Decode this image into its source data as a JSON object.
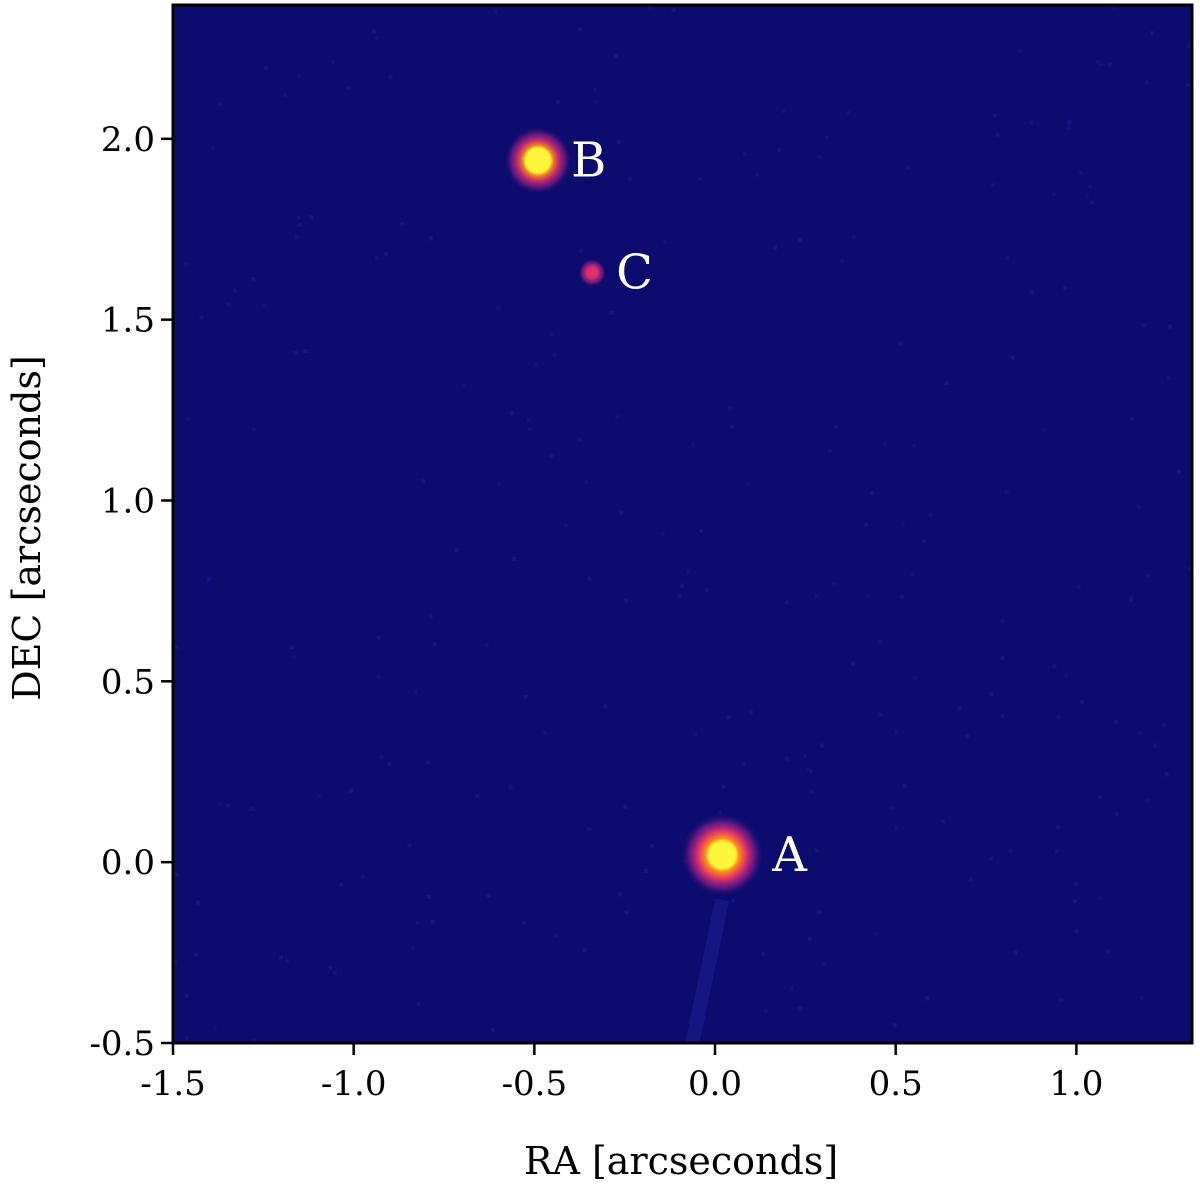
{
  "chart_data": {
    "type": "heatmap",
    "title": "",
    "xlabel": "RA [arcseconds]",
    "ylabel": "DEC [arcseconds]",
    "xlim": [
      -1.5,
      1.32
    ],
    "ylim": [
      -0.5,
      2.37
    ],
    "xticks": [
      -1.5,
      -1.0,
      -0.5,
      0.0,
      0.5,
      1.0
    ],
    "xtick_labels": [
      "-1.5",
      "-1.0",
      "-0.5",
      "0.0",
      "0.5",
      "1.0"
    ],
    "yticks": [
      -0.5,
      0.0,
      0.5,
      1.0,
      1.5,
      2.0
    ],
    "ytick_labels": [
      "-0.5",
      "0.0",
      "0.5",
      "1.0",
      "1.5",
      "2.0"
    ],
    "grid": false,
    "colormap": "plasma",
    "background_color": "#0c0c6e",
    "sources": [
      {
        "label": "A",
        "ra": 0.02,
        "dec": 0.02,
        "brightness": "brightest"
      },
      {
        "label": "B",
        "ra": -0.49,
        "dec": 1.94,
        "brightness": "bright"
      },
      {
        "label": "C",
        "ra": -0.34,
        "dec": 1.63,
        "brightness": "faint"
      }
    ]
  },
  "colors": {
    "core": "#fcf53a",
    "inner": "#ff8c1a",
    "mid": "#e8336a",
    "halo": "#9b1f8f"
  }
}
